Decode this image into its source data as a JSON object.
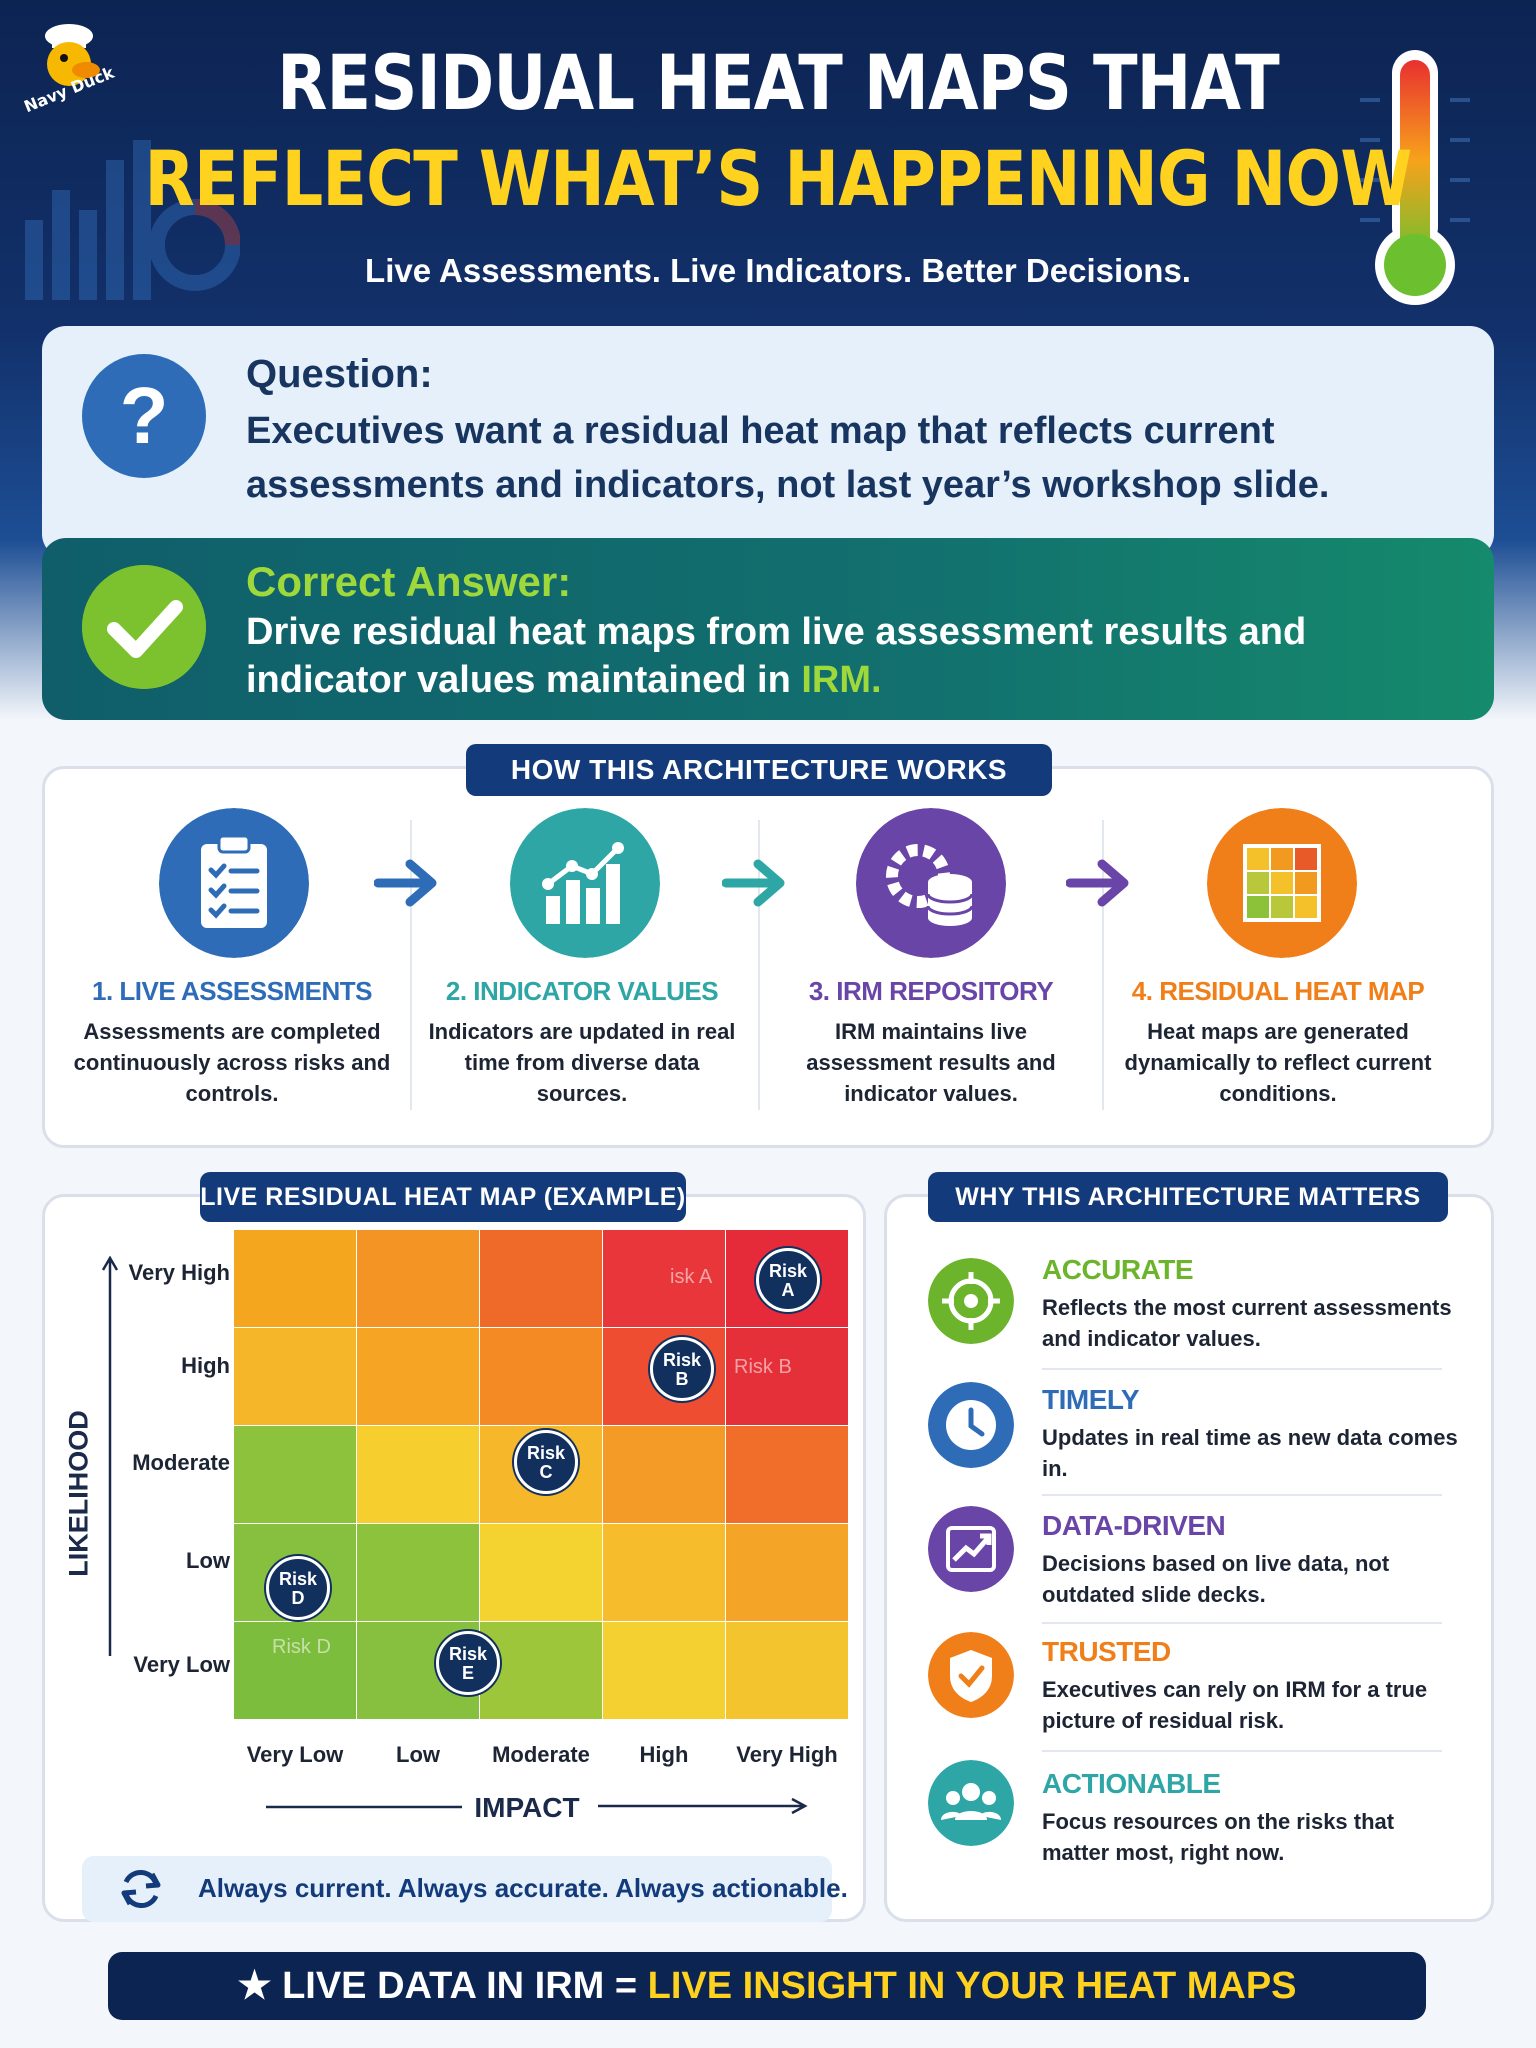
{
  "brand": {
    "logo_text": "Navy Duck"
  },
  "header": {
    "title_line1": "RESIDUAL HEAT MAPS THAT",
    "title_line2": "REFLECT WHAT’S HAPPENING NOW",
    "subtitle": "Live Assessments. Live Indicators. Better Decisions."
  },
  "question": {
    "label": "Question:",
    "text": "Executives want a residual heat map that reflects current assessments and indicators, not last year’s workshop slide."
  },
  "answer": {
    "label": "Correct Answer:",
    "text": "Drive residual heat maps from live assessment results and indicator values maintained in ",
    "highlight": "IRM."
  },
  "architecture": {
    "header": "HOW THIS ARCHITECTURE WORKS",
    "steps": [
      {
        "title": "1. LIVE ASSESSMENTS",
        "desc": "Assessments are completed continuously across risks and controls.",
        "color": "#2f6cb8",
        "icon": "clipboard-icon"
      },
      {
        "title": "2. INDICATOR VALUES",
        "desc": "Indicators are updated in real time from diverse data sources.",
        "color": "#2ea6a6",
        "icon": "bar-chart-icon"
      },
      {
        "title": "3. IRM REPOSITORY",
        "desc": "IRM maintains live assessment results and indicator values.",
        "color": "#6a45a8",
        "icon": "database-gear-icon"
      },
      {
        "title": "4. RESIDUAL HEAT MAP",
        "desc": "Heat maps are generated dynamically to reflect current conditions.",
        "color": "#f07f1a",
        "icon": "heat-grid-icon"
      }
    ]
  },
  "heatmap": {
    "header": "LIVE RESIDUAL HEAT MAP (EXAMPLE)",
    "y_axis_label": "LIKELIHOOD",
    "x_axis_label": "IMPACT",
    "likelihood_levels": [
      "Very High",
      "High",
      "Moderate",
      "Low",
      "Very Low"
    ],
    "impact_levels": [
      "Very Low",
      "Low",
      "Moderate",
      "High",
      "Very High"
    ],
    "risks": [
      {
        "line1": "Risk",
        "line2": "A"
      },
      {
        "line1": "Risk",
        "line2": "B"
      },
      {
        "line1": "Risk",
        "line2": "C"
      },
      {
        "line1": "Risk",
        "line2": "D"
      },
      {
        "line1": "Risk",
        "line2": "E"
      }
    ],
    "ghost_labels": [
      "isk A",
      "Risk B",
      "Risk D"
    ],
    "tagline": "Always current. Always accurate. Always actionable."
  },
  "why": {
    "header": "WHY THIS ARCHITECTURE MATTERS",
    "items": [
      {
        "title": "ACCURATE",
        "desc": "Reflects the most current assessments and indicator values.",
        "color": "#6bb42c",
        "icon": "target-icon"
      },
      {
        "title": "TIMELY",
        "desc": "Updates in real time as new data comes in.",
        "color": "#2f6cb8",
        "icon": "clock-icon"
      },
      {
        "title": "DATA-DRIVEN",
        "desc": "Decisions based on live data, not outdated slide decks.",
        "color": "#6a45a8",
        "icon": "trend-chart-icon"
      },
      {
        "title": "TRUSTED",
        "desc": "Executives can rely on IRM for a true picture of residual risk.",
        "color": "#f07f1a",
        "icon": "shield-check-icon"
      },
      {
        "title": "ACTIONABLE",
        "desc": "Focus resources on the risks that matter most, right now.",
        "color": "#2ea6a6",
        "icon": "team-icon"
      }
    ]
  },
  "footer": {
    "part1": "LIVE DATA IN IRM = ",
    "part2": "LIVE INSIGHT IN YOUR HEAT MAPS"
  }
}
